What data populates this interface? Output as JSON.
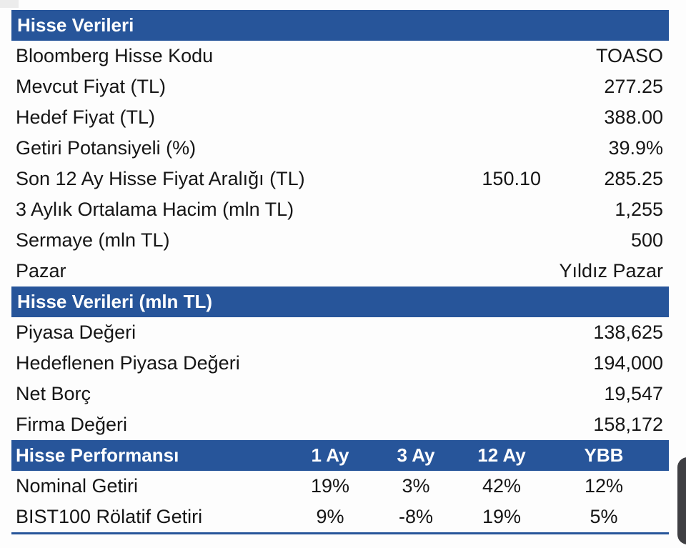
{
  "page": {
    "accent_color": "#27559a",
    "text_color": "#161616",
    "header_text_color": "#ffffff",
    "handle_color": "#3f3f43",
    "background": "#fdfdfd"
  },
  "section1": {
    "title": "Hisse Verileri",
    "rows": [
      {
        "label": "Bloomberg Hisse Kodu",
        "value": "TOASO"
      },
      {
        "label": "Mevcut Fiyat (TL)",
        "value": "277.25"
      },
      {
        "label": "Hedef Fiyat (TL)",
        "value": "388.00"
      },
      {
        "label": "Getiri Potansiyeli (%)",
        "value": "39.9%"
      },
      {
        "label": "Son 12 Ay Hisse Fiyat Aralığı (TL)",
        "value_low": "150.10",
        "value": "285.25"
      },
      {
        "label": "3 Aylık Ortalama Hacim (mln TL)",
        "value": "1,255"
      },
      {
        "label": "Sermaye (mln TL)",
        "value": "500"
      },
      {
        "label": "Pazar",
        "value": "Yıldız Pazar"
      }
    ]
  },
  "section2": {
    "title": "Hisse Verileri (mln TL)",
    "rows": [
      {
        "label": "Piyasa Değeri",
        "value": "138,625"
      },
      {
        "label": "Hedeflenen Piyasa Değeri",
        "value": "194,000"
      },
      {
        "label": "Net Borç",
        "value": "19,547"
      },
      {
        "label": "Firma Değeri",
        "value": "158,172"
      }
    ]
  },
  "section3": {
    "title": "Hisse Performansı",
    "columns": [
      "1 Ay",
      "3 Ay",
      "12 Ay",
      "YBB"
    ],
    "rows": [
      {
        "label": "Nominal Getiri",
        "values": [
          "19%",
          "3%",
          "42%",
          "12%"
        ]
      },
      {
        "label": "BIST100 Rölatif Getiri",
        "values": [
          "9%",
          "-8%",
          "19%",
          "5%"
        ]
      }
    ]
  },
  "chart_data": {
    "type": "table",
    "title": "Hisse Verileri",
    "tables": [
      {
        "title": "Hisse Verileri",
        "rows": [
          [
            "Bloomberg Hisse Kodu",
            "TOASO"
          ],
          [
            "Mevcut Fiyat (TL)",
            "277.25"
          ],
          [
            "Hedef Fiyat (TL)",
            "388.00"
          ],
          [
            "Getiri Potansiyeli (%)",
            "39.9%"
          ],
          [
            "Son 12 Ay Hisse Fiyat Aralığı (TL)",
            "150.10",
            "285.25"
          ],
          [
            "3 Aylık Ortalama Hacim (mln TL)",
            "1,255"
          ],
          [
            "Sermaye (mln TL)",
            "500"
          ],
          [
            "Pazar",
            "Yıldız Pazar"
          ]
        ]
      },
      {
        "title": "Hisse Verileri (mln TL)",
        "rows": [
          [
            "Piyasa Değeri",
            "138,625"
          ],
          [
            "Hedeflenen Piyasa Değeri",
            "194,000"
          ],
          [
            "Net Borç",
            "19,547"
          ],
          [
            "Firma Değeri",
            "158,172"
          ]
        ]
      },
      {
        "title": "Hisse Performansı",
        "columns": [
          "",
          "1 Ay",
          "3 Ay",
          "12 Ay",
          "YBB"
        ],
        "rows": [
          [
            "Nominal Getiri",
            "19%",
            "3%",
            "42%",
            "12%"
          ],
          [
            "BIST100 Rölatif Getiri",
            "9%",
            "-8%",
            "19%",
            "5%"
          ]
        ]
      }
    ]
  }
}
